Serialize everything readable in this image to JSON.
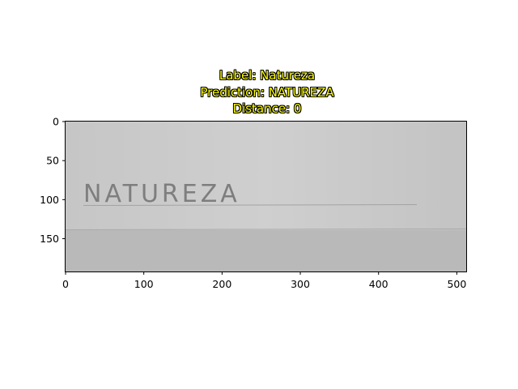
{
  "title": {
    "label_line": "Label: Natureza",
    "prediction_line": "Prediction: NATUREZA",
    "distance_line": "Distance: 0"
  },
  "image": {
    "handwritten_text": "NATUREZA",
    "width": 512,
    "height": 192
  },
  "x_axis": {
    "ticks": [
      0,
      100,
      200,
      300,
      400,
      500
    ],
    "range": [
      0,
      512
    ]
  },
  "y_axis": {
    "ticks": [
      0,
      50,
      100,
      150
    ],
    "range": [
      0,
      192
    ]
  },
  "colors": {
    "title_text": "#ffff00",
    "title_outline": "#000000",
    "paper_upper": "#c9c9c9",
    "paper_lower": "#b8b8b8",
    "ink": "#7e7e7e"
  }
}
